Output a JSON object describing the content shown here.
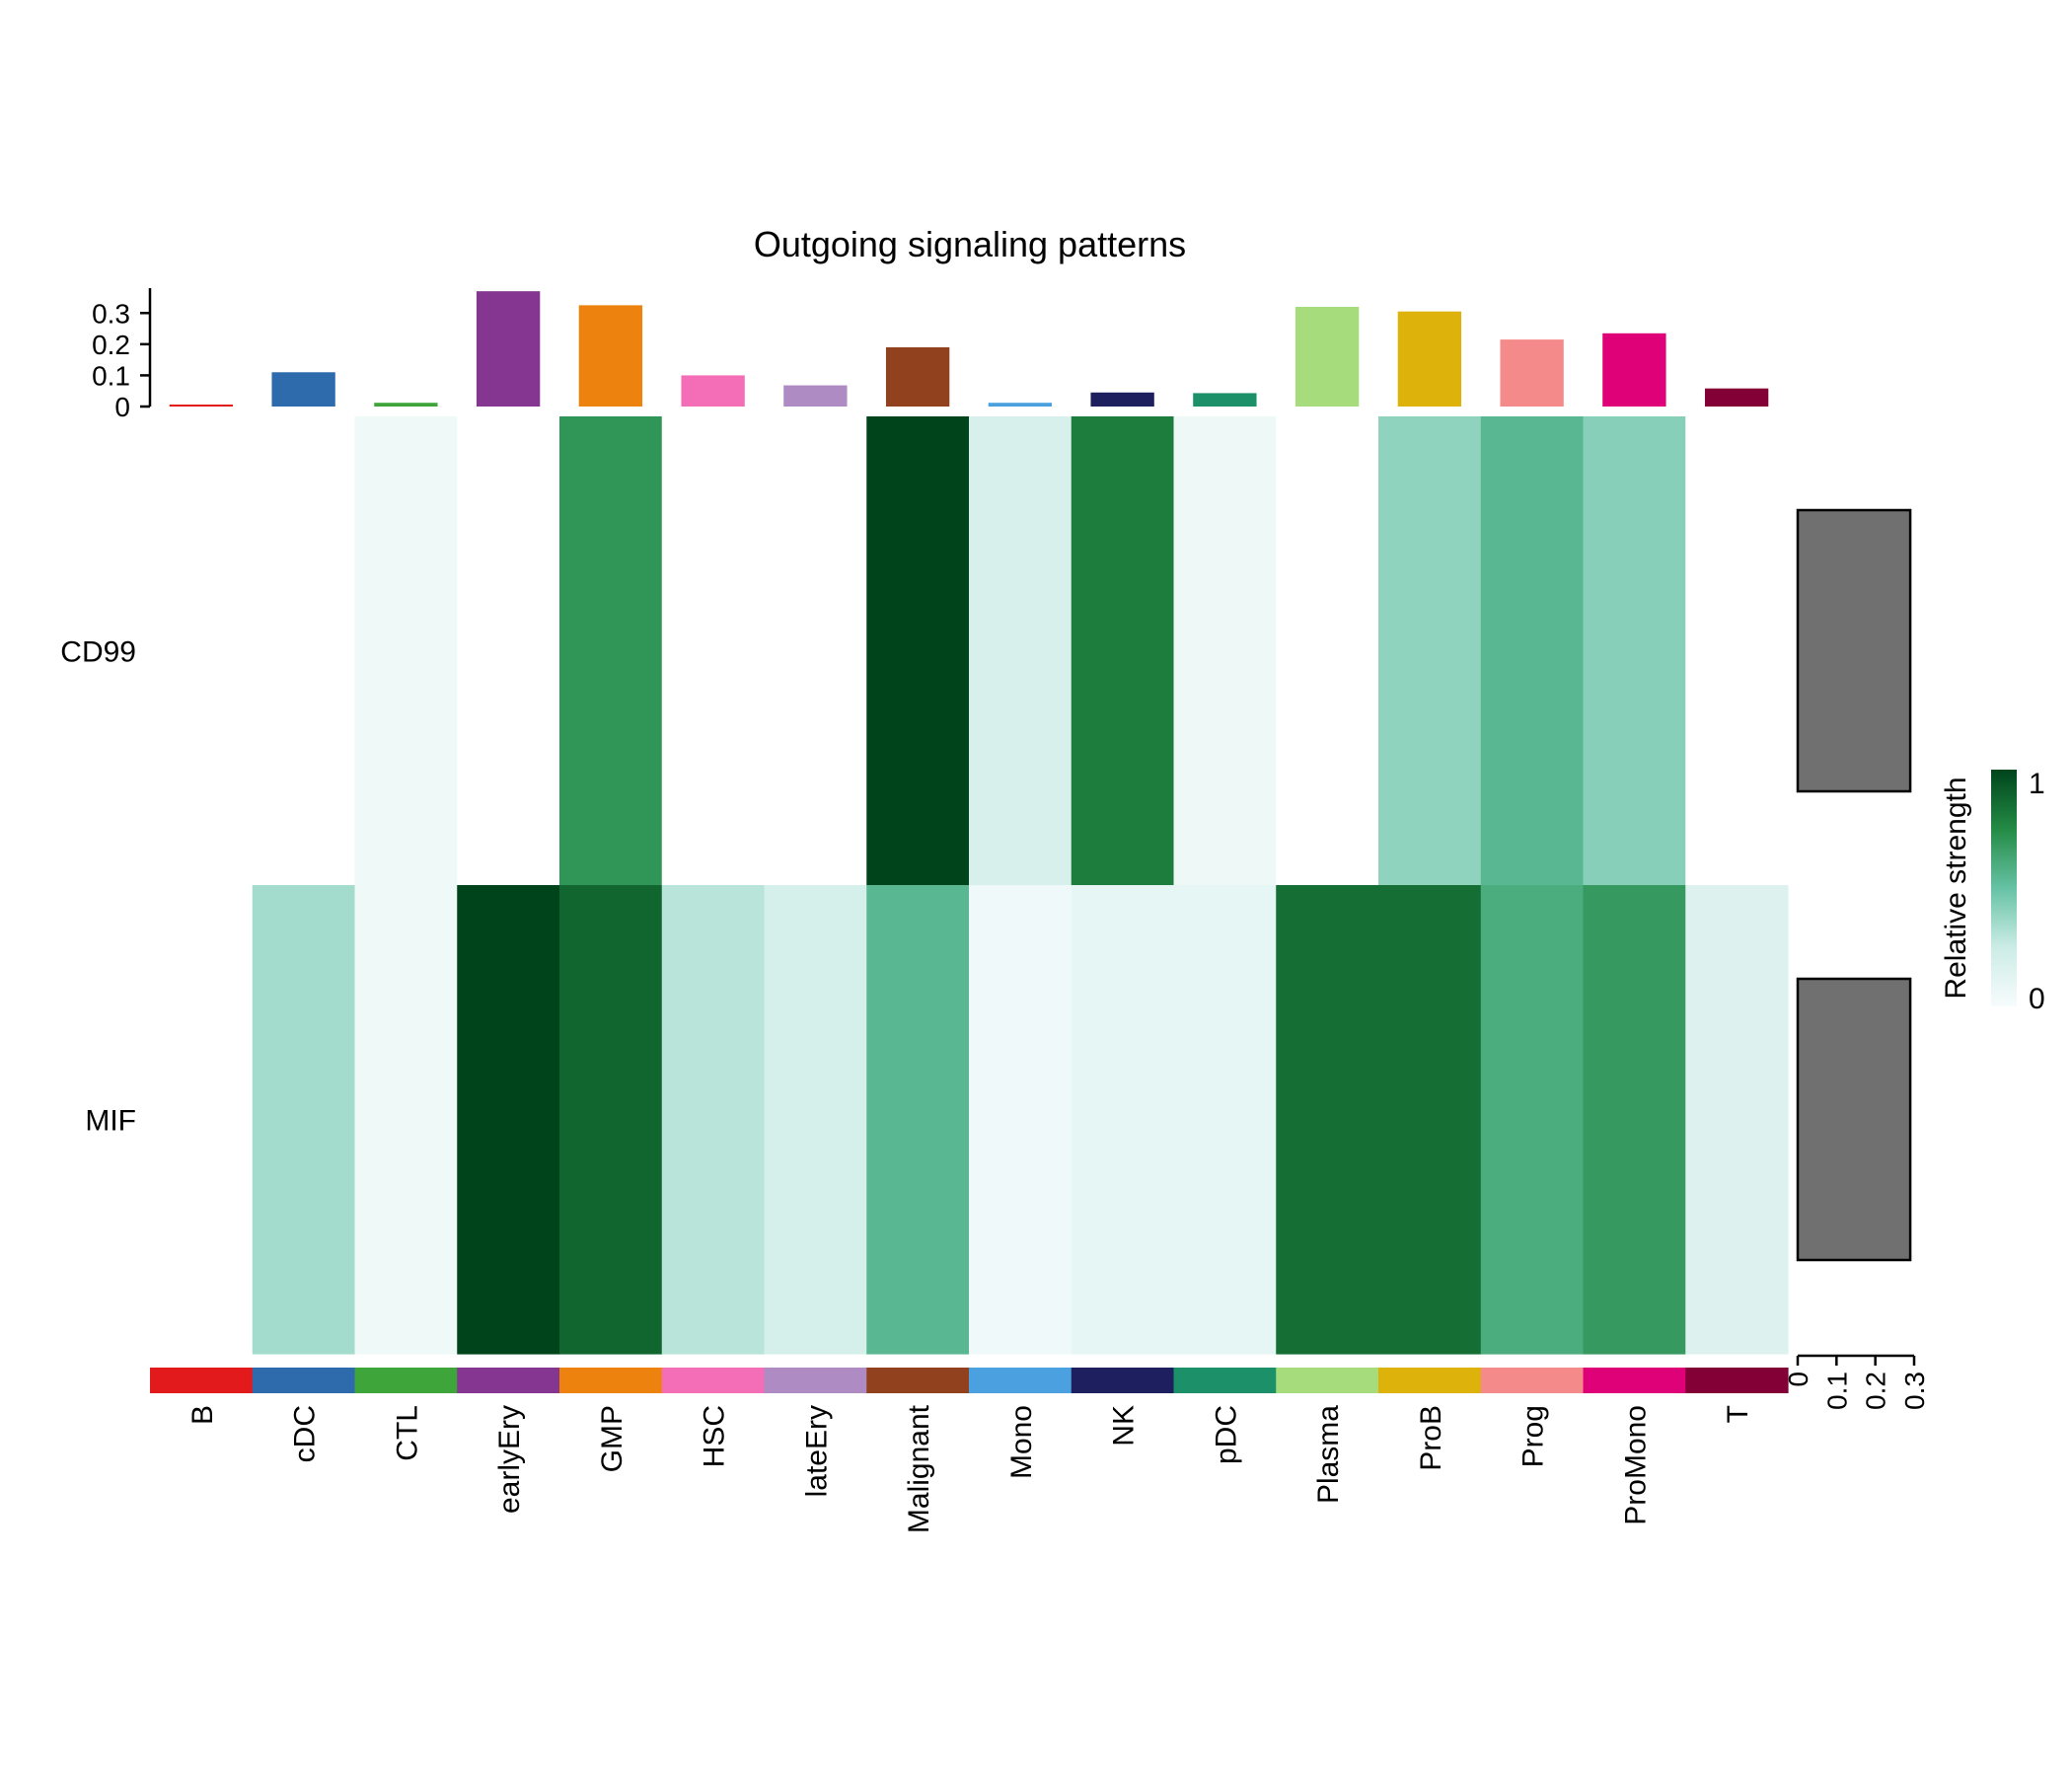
{
  "chart_data": {
    "type": "heatmap",
    "title": "Outgoing signaling patterns",
    "rows": [
      "CD99",
      "MIF"
    ],
    "columns": [
      "B",
      "cDC",
      "CTL",
      "earlyEry",
      "GMP",
      "HSC",
      "lateEry",
      "Malignant",
      "Mono",
      "NK",
      "pDC",
      "Plasma",
      "ProB",
      "Prog",
      "ProMono",
      "T"
    ],
    "column_colors": [
      "#E31A1C",
      "#2E6BAD",
      "#3EA53A",
      "#843690",
      "#EE820E",
      "#F36EB6",
      "#AE8CC3",
      "#91411E",
      "#4BA1E0",
      "#1D1F5E",
      "#1C9069",
      "#A6DC7B",
      "#DCB20B",
      "#F58A8A",
      "#DF0177",
      "#820035"
    ],
    "values": [
      [
        0.0,
        0.0,
        0.05,
        0.0,
        0.7,
        0.0,
        0.0,
        1.0,
        0.18,
        0.8,
        0.06,
        0.0,
        0.4,
        0.55,
        0.42,
        0.0
      ],
      [
        0.0,
        0.35,
        0.05,
        1.0,
        0.88,
        0.3,
        0.2,
        0.55,
        0.04,
        0.1,
        0.1,
        0.85,
        0.85,
        0.6,
        0.68,
        0.15
      ]
    ],
    "top_bar": {
      "values": [
        0.005,
        0.11,
        0.012,
        0.37,
        0.325,
        0.1,
        0.068,
        0.19,
        0.012,
        0.045,
        0.043,
        0.32,
        0.305,
        0.215,
        0.235,
        0.058
      ],
      "ticks": [
        "0",
        "0.1",
        "0.2",
        "0.3"
      ],
      "ylim": [
        0,
        0.38
      ]
    },
    "right_bar": {
      "values": [
        0.29,
        0.29
      ],
      "color": "#707070",
      "ticks": [
        "0",
        "0.1",
        "0.2",
        "0.3"
      ],
      "xlim": [
        0,
        0.3
      ]
    },
    "legend": {
      "title": "Relative strength",
      "min_label": "0",
      "max_label": "1",
      "colors": [
        "#F7FCFD",
        "#CCECE6",
        "#66C2A4",
        "#238B45",
        "#00441B"
      ]
    }
  }
}
